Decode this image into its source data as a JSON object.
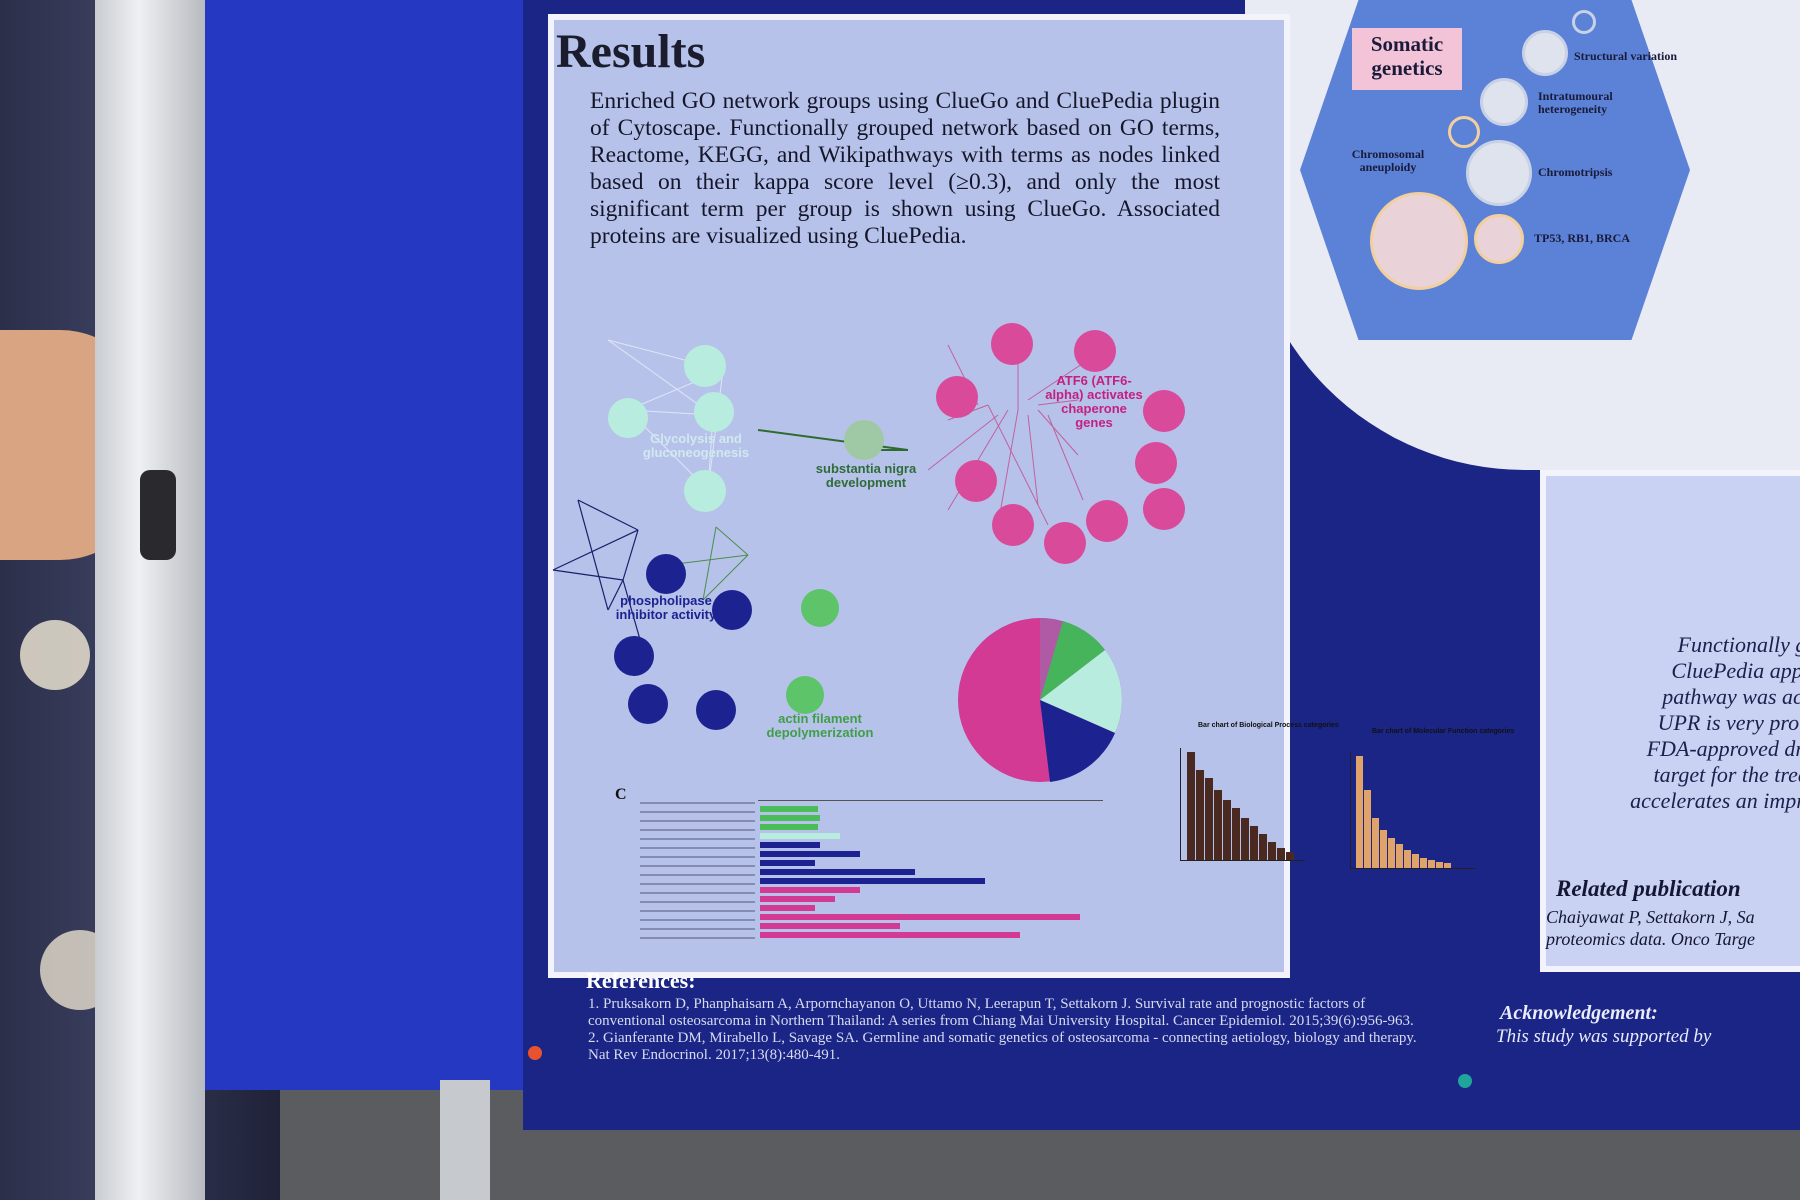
{
  "results": {
    "heading": "Results",
    "summary": "Enriched GO network groups using ClueGo and CluePedia plugin of Cytoscape. Functionally grouped network based on GO terms, Reactome, KEGG, and Wikipathways with terms as nodes linked based on their kappa score level (≥0.3), and only the most significant term per group is shown using ClueGo. Associated proteins are visualized using CluePedia."
  },
  "somatic": {
    "label": "Somatic genetics",
    "items": [
      "Structural variation",
      "Intratumoural heterogeneity",
      "Chromosomal aneuploidy",
      "Chromotripsis",
      "TP53, RB1, BRCA"
    ]
  },
  "networks": {
    "group1_label": "Glycolysis and gluconeogenesis",
    "group2_label": "substantia nigra development",
    "group3_label": "ATF6 (ATF6-alpha) activates chaperone genes",
    "group4_label": "phospholipase inhibitor activity",
    "group5_label": "actin filament depolymerization"
  },
  "panel_c": {
    "label": "C"
  },
  "bar_charts": {
    "bp_title": "Bar chart of Biological Process categories",
    "mf_title": "Bar chart of Molecular Function categories"
  },
  "right_panel": {
    "lines": [
      "Functionally gr",
      "CluePedia appli",
      "pathway was acti",
      "UPR is very prom",
      "FDA-approved dru",
      "target for the treat",
      "accelerates an impro"
    ],
    "related_heading": "Related publication",
    "related_lines": [
      "Chaiyawat P, Settakorn J, Sa",
      "proteomics data. Onco Targe"
    ]
  },
  "references": {
    "heading": "References:",
    "ref1": "1. Pruksakorn D, Phanphaisarn A, Arpornchayanon O, Uttamo N, Leerapun T, Settakorn J. Survival rate and prognostic factors of conventional osteosarcoma in Northern Thailand: A series from Chiang Mai University Hospital. Cancer Epidemiol. 2015;39(6):956-963.",
    "ref2": "2. Gianferante DM, Mirabello L, Savage SA. Germline and somatic genetics of osteosarcoma - connecting aetiology, biology and therapy. Nat Rev Endocrinol. 2017;13(8):480-491."
  },
  "acknowledgement": {
    "heading": "Acknowledgement:",
    "text": "This study was supported by"
  },
  "colors": {
    "board": "#1f2fb5",
    "poster_dark": "#1b2585",
    "panel": "#b7c2ea",
    "pink_nodes": "#d94a9b",
    "navy_nodes": "#1c2391",
    "green_nodes": "#5ec46a",
    "teal_nodes": "#b8ecdf",
    "brown_bars": "#4a2a20",
    "orange_bars": "#e0a46a"
  }
}
